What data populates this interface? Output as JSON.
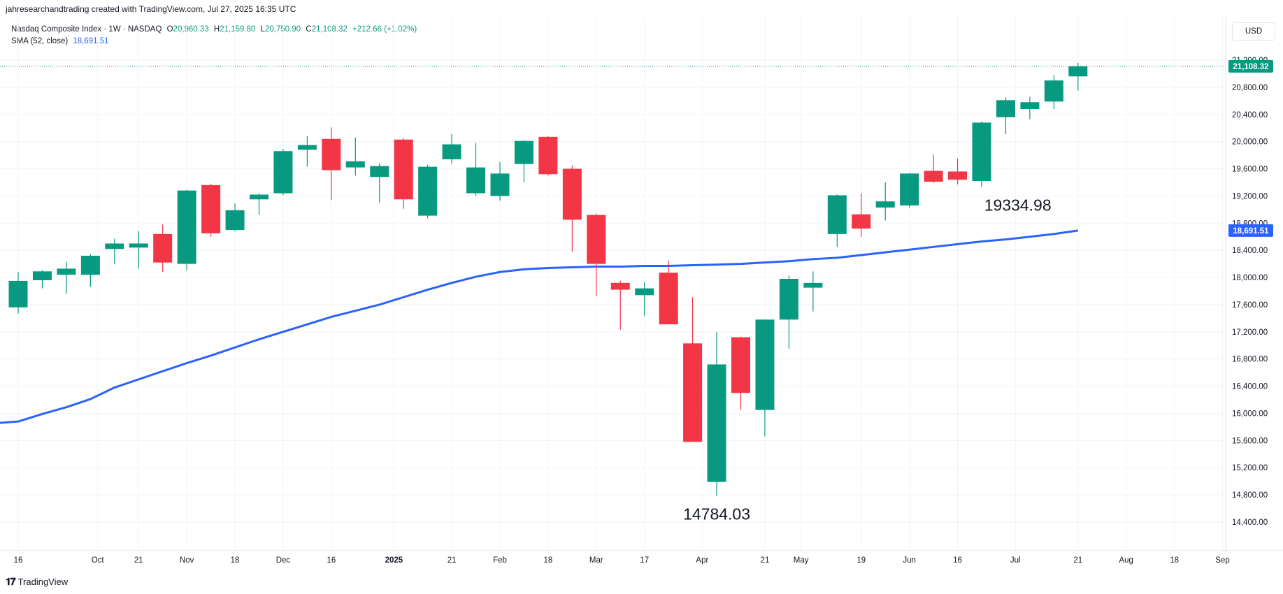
{
  "header": {
    "credit": "jahresearchandtrading created with TradingView.com, Jul 27, 2025 16:35 UTC"
  },
  "legend": {
    "symbol": "Nasdaq Composite Index · 1W · NASDAQ",
    "o_label": "O",
    "o_value": "20,960.33",
    "h_label": "H",
    "h_value": "21,159.80",
    "l_label": "L",
    "l_value": "20,750.90",
    "c_label": "C",
    "c_value": "21,108.32",
    "change": "+212.66 (+1.02%)",
    "sma_label": "SMA (52, close)",
    "sma_value": "18,691.51"
  },
  "currency": "USD",
  "branding": {
    "icon": "tradingview-logo-icon",
    "text": "TradingView"
  },
  "colors": {
    "up": "#089981",
    "down": "#f23645",
    "sma": "#2962ff",
    "grid": "#f0f3fa"
  },
  "chart_data": {
    "type": "candlestick",
    "title": "Nasdaq Composite Index · 1W · NASDAQ",
    "ylim": [
      14300,
      21400
    ],
    "y_ticks": [
      "14,400.00",
      "14,800.00",
      "15,200.00",
      "15,600.00",
      "16,000.00",
      "16,400.00",
      "16,800.00",
      "17,200.00",
      "17,600.00",
      "18,000.00",
      "18,400.00",
      "18,800.00",
      "19,200.00",
      "19,600.00",
      "20,000.00",
      "20,400.00",
      "20,800.00",
      "21,200.00"
    ],
    "x_tick_labels": [
      {
        "label": "16",
        "week": 0
      },
      {
        "label": "Oct",
        "week": 3.3
      },
      {
        "label": "21",
        "week": 5
      },
      {
        "label": "Nov",
        "week": 7
      },
      {
        "label": "18",
        "week": 9
      },
      {
        "label": "Dec",
        "week": 11
      },
      {
        "label": "16",
        "week": 13
      },
      {
        "label": "2025",
        "week": 15.6
      },
      {
        "label": "21",
        "week": 18
      },
      {
        "label": "Feb",
        "week": 20
      },
      {
        "label": "18",
        "week": 22
      },
      {
        "label": "Mar",
        "week": 24
      },
      {
        "label": "17",
        "week": 26
      },
      {
        "label": "Apr",
        "week": 28.4
      },
      {
        "label": "21",
        "week": 31
      },
      {
        "label": "May",
        "week": 32.5
      },
      {
        "label": "19",
        "week": 35
      },
      {
        "label": "Jun",
        "week": 37
      },
      {
        "label": "16",
        "week": 39
      },
      {
        "label": "Jul",
        "week": 41.4
      },
      {
        "label": "21",
        "week": 44
      },
      {
        "label": "Aug",
        "week": 46
      },
      {
        "label": "18",
        "week": 48
      },
      {
        "label": "Sep",
        "week": 50
      }
    ],
    "candles": [
      {
        "o": 17560,
        "h": 18080,
        "l": 17470,
        "c": 17950
      },
      {
        "o": 17960,
        "h": 18110,
        "l": 17840,
        "c": 18090
      },
      {
        "o": 18040,
        "h": 18230,
        "l": 17760,
        "c": 18130
      },
      {
        "o": 18040,
        "h": 18340,
        "l": 17860,
        "c": 18320
      },
      {
        "o": 18420,
        "h": 18570,
        "l": 18200,
        "c": 18500
      },
      {
        "o": 18440,
        "h": 18680,
        "l": 18130,
        "c": 18500
      },
      {
        "o": 18640,
        "h": 18780,
        "l": 18080,
        "c": 18220
      },
      {
        "o": 18200,
        "h": 19290,
        "l": 18110,
        "c": 19280
      },
      {
        "o": 19360,
        "h": 19380,
        "l": 18600,
        "c": 18650
      },
      {
        "o": 18700,
        "h": 19090,
        "l": 18680,
        "c": 18990
      },
      {
        "o": 19150,
        "h": 19240,
        "l": 18920,
        "c": 19220
      },
      {
        "o": 19240,
        "h": 19890,
        "l": 19210,
        "c": 19860
      },
      {
        "o": 19880,
        "h": 20080,
        "l": 19630,
        "c": 19950
      },
      {
        "o": 20040,
        "h": 20210,
        "l": 19140,
        "c": 19580
      },
      {
        "o": 19620,
        "h": 20060,
        "l": 19500,
        "c": 19710
      },
      {
        "o": 19480,
        "h": 19680,
        "l": 19100,
        "c": 19640
      },
      {
        "o": 20030,
        "h": 20050,
        "l": 19010,
        "c": 19150
      },
      {
        "o": 18910,
        "h": 19660,
        "l": 18870,
        "c": 19630
      },
      {
        "o": 19740,
        "h": 20110,
        "l": 19680,
        "c": 19960
      },
      {
        "o": 19240,
        "h": 19980,
        "l": 19200,
        "c": 19620
      },
      {
        "o": 19200,
        "h": 19700,
        "l": 19130,
        "c": 19530
      },
      {
        "o": 19670,
        "h": 20020,
        "l": 19400,
        "c": 20010
      },
      {
        "o": 20070,
        "h": 20080,
        "l": 19500,
        "c": 19520
      },
      {
        "o": 19600,
        "h": 19650,
        "l": 18380,
        "c": 18850
      },
      {
        "o": 18920,
        "h": 18940,
        "l": 17730,
        "c": 18200
      },
      {
        "o": 17920,
        "h": 17950,
        "l": 17230,
        "c": 17820
      },
      {
        "o": 17740,
        "h": 17930,
        "l": 17430,
        "c": 17840
      },
      {
        "o": 18070,
        "h": 18250,
        "l": 17320,
        "c": 17310
      },
      {
        "o": 17030,
        "h": 17710,
        "l": 15580,
        "c": 15580
      },
      {
        "o": 14990,
        "h": 17200,
        "l": 14784.03,
        "c": 16720
      },
      {
        "o": 17120,
        "h": 17130,
        "l": 16050,
        "c": 16300
      },
      {
        "o": 16050,
        "h": 17380,
        "l": 15660,
        "c": 17380
      },
      {
        "o": 17380,
        "h": 18030,
        "l": 16950,
        "c": 17980
      },
      {
        "o": 17850,
        "h": 18090,
        "l": 17500,
        "c": 17920
      },
      {
        "o": 18640,
        "h": 19220,
        "l": 18450,
        "c": 19210
      },
      {
        "o": 18930,
        "h": 19240,
        "l": 18600,
        "c": 18720
      },
      {
        "o": 19030,
        "h": 19400,
        "l": 18840,
        "c": 19120
      },
      {
        "o": 19060,
        "h": 19540,
        "l": 19030,
        "c": 19530
      },
      {
        "o": 19570,
        "h": 19810,
        "l": 19390,
        "c": 19410
      },
      {
        "o": 19560,
        "h": 19750,
        "l": 19370,
        "c": 19440
      },
      {
        "o": 19420,
        "h": 20300,
        "l": 19334.98,
        "c": 20280
      },
      {
        "o": 20360,
        "h": 20650,
        "l": 20110,
        "c": 20610
      },
      {
        "o": 20480,
        "h": 20660,
        "l": 20330,
        "c": 20580
      },
      {
        "o": 20590,
        "h": 20980,
        "l": 20480,
        "c": 20900
      },
      {
        "o": 20960.33,
        "h": 21159.8,
        "l": 20750.9,
        "c": 21108.32
      }
    ],
    "sma_series": {
      "name": "SMA (52, close)",
      "values": [
        15880,
        15990,
        16090,
        16210,
        16380,
        16500,
        16620,
        16740,
        16850,
        16970,
        17090,
        17200,
        17310,
        17420,
        17510,
        17600,
        17710,
        17820,
        17920,
        18010,
        18080,
        18120,
        18140,
        18150,
        18160,
        18160,
        18170,
        18170,
        18180,
        18190,
        18200,
        18220,
        18240,
        18270,
        18290,
        18330,
        18370,
        18410,
        18450,
        18490,
        18530,
        18560,
        18600,
        18640,
        18691.51
      ]
    },
    "price_line": {
      "value": 21108.32,
      "label": "21,108.32"
    },
    "sma_label": {
      "value": 18691.51,
      "label": "18,691.51"
    },
    "annotations": [
      {
        "text": "19334.98",
        "week": 41.5,
        "value": 19334.98,
        "placement": "below"
      },
      {
        "text": "14784.03",
        "week": 29,
        "value": 14784.03,
        "placement": "below"
      }
    ],
    "grid": true
  }
}
